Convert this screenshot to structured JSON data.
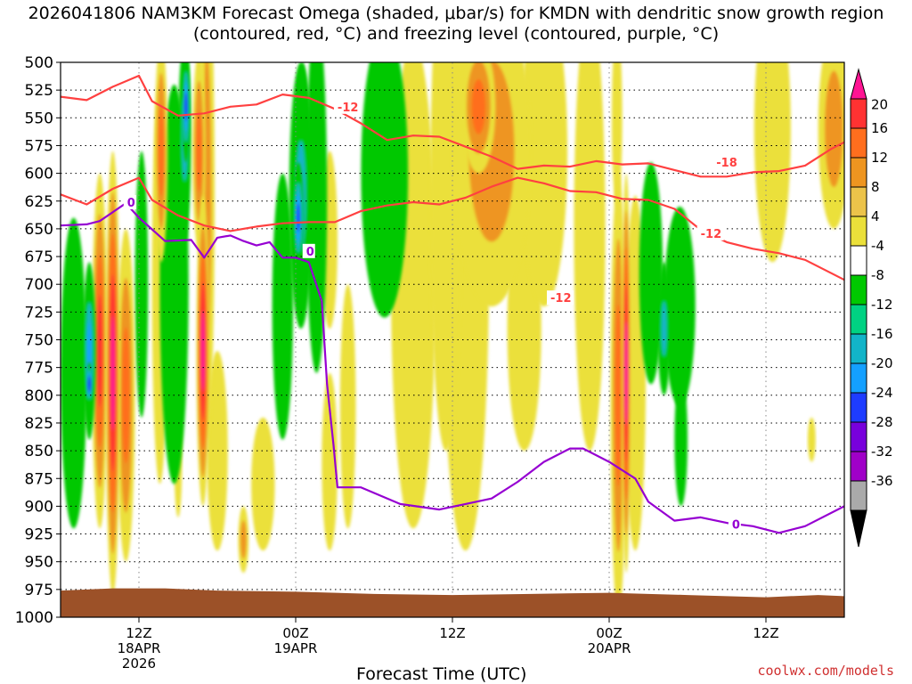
{
  "chart_data": {
    "type": "heatmap",
    "title": "2026041806 NAM3KM Forecast Omega (shaded, μbar/s) for KMDN with dendritic snow growth region (contoured, red, °C) and freezing level (contoured, purple, °C)",
    "xlabel": "Forecast Time (UTC)",
    "ylabel": "Pressure (hPa)",
    "credit": "coolwx.com/models",
    "y_ticks": [
      500,
      525,
      550,
      575,
      600,
      625,
      650,
      675,
      700,
      725,
      750,
      775,
      800,
      825,
      850,
      875,
      900,
      925,
      950,
      975,
      1000
    ],
    "x_range_hours": [
      0,
      60
    ],
    "x_ticks": [
      {
        "hour": 6,
        "lines": [
          "12Z",
          "18APR",
          "2026"
        ]
      },
      {
        "hour": 18,
        "lines": [
          "00Z",
          "19APR"
        ]
      },
      {
        "hour": 30,
        "lines": [
          "12Z"
        ]
      },
      {
        "hour": 42,
        "lines": [
          "00Z",
          "20APR"
        ]
      },
      {
        "hour": 54,
        "lines": [
          "12Z"
        ]
      }
    ],
    "colorbar": {
      "labels": [
        "20",
        "16",
        "12",
        "8",
        "4",
        "-4",
        "-8",
        "-12",
        "-16",
        "-20",
        "-24",
        "-28",
        "-32",
        "-36"
      ],
      "colors": [
        "#ff1493",
        "#ff3232",
        "#ff6e1e",
        "#ee9520",
        "#ecc34a",
        "#ebe03a",
        "#ffffff",
        "#00c800",
        "#00d282",
        "#12b4c8",
        "#14a0ff",
        "#1e3cff",
        "#7800dc",
        "#a000c8",
        "#aaaaaa",
        "#000000"
      ]
    },
    "freezing_level": {
      "label": "0",
      "color": "#9600d2",
      "label_positions_hour": [
        5.1,
        18.8,
        51.4
      ]
    },
    "dgz_contours": {
      "color": "#ff4040",
      "labels": [
        "-12",
        "-18",
        "-12",
        "-12"
      ]
    },
    "freezing_level_points": [
      [
        0,
        647
      ],
      [
        2,
        646
      ],
      [
        3,
        643
      ],
      [
        5,
        627
      ],
      [
        6,
        640
      ],
      [
        8,
        661
      ],
      [
        10,
        660
      ],
      [
        11,
        676
      ],
      [
        12,
        658
      ],
      [
        13,
        656
      ],
      [
        14,
        661
      ],
      [
        15,
        665
      ],
      [
        16,
        662
      ],
      [
        17,
        676
      ],
      [
        18,
        676
      ],
      [
        19,
        680
      ],
      [
        20,
        715
      ],
      [
        20.4,
        790
      ],
      [
        20.9,
        845
      ],
      [
        21.2,
        883
      ],
      [
        23,
        883
      ],
      [
        26,
        898
      ],
      [
        29,
        903
      ],
      [
        31,
        898
      ],
      [
        33,
        893
      ],
      [
        35,
        878
      ],
      [
        37,
        860
      ],
      [
        39,
        848
      ],
      [
        40,
        848
      ],
      [
        42,
        860
      ],
      [
        44,
        875
      ],
      [
        45,
        896
      ],
      [
        47,
        913
      ],
      [
        49,
        910
      ],
      [
        51,
        915
      ],
      [
        53,
        918
      ],
      [
        55,
        924
      ],
      [
        57,
        918
      ],
      [
        60,
        900
      ]
    ],
    "dgz_warm_edge_points": [
      [
        0,
        619
      ],
      [
        2,
        628
      ],
      [
        4,
        614
      ],
      [
        6,
        604
      ],
      [
        7,
        624
      ],
      [
        9,
        638
      ],
      [
        11,
        647
      ],
      [
        13,
        652
      ],
      [
        15,
        648
      ],
      [
        17,
        645
      ],
      [
        19,
        644
      ],
      [
        21,
        644
      ],
      [
        23,
        634
      ],
      [
        25,
        629
      ],
      [
        27,
        626
      ],
      [
        29,
        628
      ],
      [
        31,
        622
      ],
      [
        33,
        612
      ],
      [
        35,
        604
      ],
      [
        37,
        609
      ],
      [
        39,
        616
      ],
      [
        41,
        617
      ],
      [
        43,
        623
      ],
      [
        45,
        624
      ],
      [
        47,
        632
      ],
      [
        49,
        651
      ],
      [
        51,
        662
      ],
      [
        53,
        668
      ],
      [
        55,
        672
      ],
      [
        57,
        678
      ],
      [
        59,
        690
      ],
      [
        60,
        696
      ]
    ],
    "dgz_cold_edge_points": [
      [
        0,
        531
      ],
      [
        2,
        534
      ],
      [
        4,
        522
      ],
      [
        6,
        512
      ],
      [
        7,
        535
      ],
      [
        9,
        548
      ],
      [
        11,
        546
      ],
      [
        13,
        540
      ],
      [
        15,
        538
      ],
      [
        17,
        529
      ],
      [
        19,
        532
      ],
      [
        21,
        542
      ],
      [
        23,
        555
      ],
      [
        25,
        570
      ],
      [
        27,
        566
      ],
      [
        29,
        567
      ],
      [
        31,
        576
      ],
      [
        33,
        585
      ],
      [
        35,
        596
      ],
      [
        37,
        593
      ],
      [
        39,
        594
      ],
      [
        41,
        589
      ],
      [
        43,
        592
      ],
      [
        45,
        591
      ],
      [
        47,
        597
      ],
      [
        49,
        603
      ],
      [
        51,
        603
      ],
      [
        53,
        599
      ],
      [
        55,
        598
      ],
      [
        57,
        593
      ],
      [
        59,
        578
      ],
      [
        60,
        572
      ]
    ],
    "omega_cells": [
      {
        "x": 4.0,
        "p": 780,
        "rx": 0.55,
        "rp": 200,
        "v": 22
      },
      {
        "x": 3.0,
        "p": 760,
        "rx": 0.6,
        "rp": 160,
        "v": 16
      },
      {
        "x": 5.0,
        "p": 800,
        "rx": 0.7,
        "rp": 150,
        "v": 12
      },
      {
        "x": 1.0,
        "p": 780,
        "rx": 1.0,
        "rp": 140,
        "v": -9
      },
      {
        "x": 2.2,
        "p": 760,
        "rx": 0.5,
        "rp": 80,
        "v": -18
      },
      {
        "x": 2.2,
        "p": 790,
        "rx": 0.2,
        "rp": 20,
        "v": -24
      },
      {
        "x": 6.2,
        "p": 700,
        "rx": 0.5,
        "rp": 120,
        "v": -10
      },
      {
        "x": 7.7,
        "p": 580,
        "rx": 0.5,
        "rp": 100,
        "v": 14
      },
      {
        "x": 7.6,
        "p": 700,
        "rx": 0.6,
        "rp": 180,
        "v": 6
      },
      {
        "x": 8.7,
        "p": 700,
        "rx": 1.1,
        "rp": 180,
        "v": -9
      },
      {
        "x": 9.6,
        "p": 540,
        "rx": 0.3,
        "rp": 50,
        "v": -22
      },
      {
        "x": 9.5,
        "p": 570,
        "rx": 0.5,
        "rp": 90,
        "v": -12
      },
      {
        "x": 10.9,
        "p": 760,
        "rx": 0.5,
        "rp": 140,
        "v": 22
      },
      {
        "x": 10.6,
        "p": 580,
        "rx": 0.5,
        "rp": 90,
        "v": 14
      },
      {
        "x": 11.2,
        "p": 620,
        "rx": 0.6,
        "rp": 220,
        "v": 10
      },
      {
        "x": 12.0,
        "p": 850,
        "rx": 0.8,
        "rp": 90,
        "v": 5
      },
      {
        "x": 9.0,
        "p": 860,
        "rx": 0.3,
        "rp": 50,
        "v": 6
      },
      {
        "x": 14.0,
        "p": 930,
        "rx": 0.4,
        "rp": 30,
        "v": 10
      },
      {
        "x": 15.5,
        "p": 880,
        "rx": 0.9,
        "rp": 60,
        "v": 5
      },
      {
        "x": 17.0,
        "p": 720,
        "rx": 0.8,
        "rp": 120,
        "v": -9
      },
      {
        "x": 18.4,
        "p": 620,
        "rx": 0.9,
        "rp": 120,
        "v": -15
      },
      {
        "x": 18.2,
        "p": 640,
        "rx": 0.4,
        "rp": 50,
        "v": -22
      },
      {
        "x": 18.5,
        "p": 560,
        "rx": 0.5,
        "rp": 60,
        "v": -13
      },
      {
        "x": 19.6,
        "p": 620,
        "rx": 0.8,
        "rp": 160,
        "v": -8
      },
      {
        "x": 20.6,
        "p": 660,
        "rx": 0.6,
        "rp": 80,
        "v": 5
      },
      {
        "x": 20.6,
        "p": 860,
        "rx": 0.6,
        "rp": 80,
        "v": 6
      },
      {
        "x": 22.0,
        "p": 810,
        "rx": 0.6,
        "rp": 110,
        "v": 6
      },
      {
        "x": 24.8,
        "p": 600,
        "rx": 1.8,
        "rp": 130,
        "v": -8
      },
      {
        "x": 27.0,
        "p": 700,
        "rx": 1.7,
        "rp": 220,
        "v": 5
      },
      {
        "x": 29.5,
        "p": 620,
        "rx": 1.2,
        "rp": 230,
        "v": 6
      },
      {
        "x": 31.0,
        "p": 680,
        "rx": 1.8,
        "rp": 260,
        "v": 5
      },
      {
        "x": 33.0,
        "p": 580,
        "rx": 3.0,
        "rp": 140,
        "v": 8
      },
      {
        "x": 32.0,
        "p": 540,
        "rx": 1.3,
        "rp": 60,
        "v": 12
      },
      {
        "x": 35.5,
        "p": 740,
        "rx": 1.3,
        "rp": 110,
        "v": 5
      },
      {
        "x": 37.0,
        "p": 580,
        "rx": 1.8,
        "rp": 140,
        "v": 5
      },
      {
        "x": 40.5,
        "p": 650,
        "rx": 1.2,
        "rp": 200,
        "v": 5
      },
      {
        "x": 43.3,
        "p": 780,
        "rx": 0.35,
        "rp": 180,
        "v": 22
      },
      {
        "x": 42.7,
        "p": 800,
        "rx": 0.6,
        "rp": 200,
        "v": 12
      },
      {
        "x": 44.0,
        "p": 780,
        "rx": 0.8,
        "rp": 160,
        "v": 6
      },
      {
        "x": 45.2,
        "p": 690,
        "rx": 0.9,
        "rp": 100,
        "v": -9
      },
      {
        "x": 46.2,
        "p": 740,
        "rx": 0.5,
        "rp": 60,
        "v": -14
      },
      {
        "x": 47.4,
        "p": 720,
        "rx": 1.2,
        "rp": 90,
        "v": -9
      },
      {
        "x": 47.5,
        "p": 840,
        "rx": 0.5,
        "rp": 60,
        "v": -9
      },
      {
        "x": 42.6,
        "p": 550,
        "rx": 0.4,
        "rp": 80,
        "v": 6
      },
      {
        "x": 54.5,
        "p": 560,
        "rx": 1.4,
        "rp": 120,
        "v": 5
      },
      {
        "x": 59.2,
        "p": 560,
        "rx": 1.2,
        "rp": 90,
        "v": 8
      },
      {
        "x": 57.5,
        "p": 840,
        "rx": 0.3,
        "rp": 20,
        "v": 5
      }
    ]
  }
}
